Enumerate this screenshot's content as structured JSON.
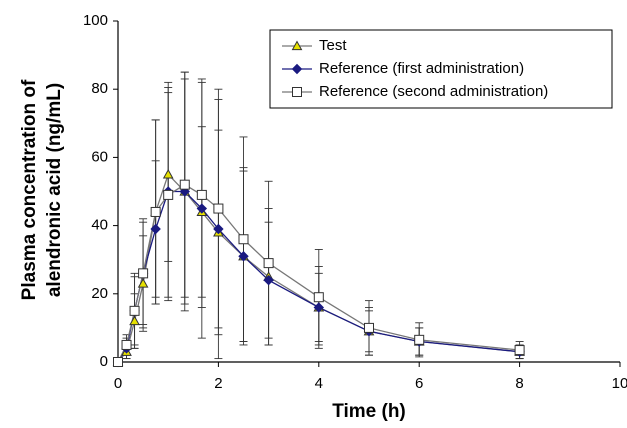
{
  "chart_data": {
    "type": "line",
    "x_label": "Time (h)",
    "y_label": [
      "Plasma concentration of",
      "alendronic acid (ng/mL)"
    ],
    "x": [
      0,
      0.17,
      0.33,
      0.5,
      0.75,
      1,
      1.33,
      1.67,
      2,
      2.5,
      3,
      4,
      5,
      6,
      8
    ],
    "series": [
      {
        "name": "Test",
        "color": "#777777",
        "marker": "triangle",
        "marker_color": "#e6e000",
        "values": [
          0,
          3,
          12,
          23,
          44,
          55,
          50,
          44,
          38,
          31,
          25,
          16,
          9,
          6,
          3
        ],
        "errors": [
          0,
          2,
          8,
          14,
          27,
          25.5,
          33,
          25,
          30,
          25,
          20,
          12,
          7,
          4,
          2
        ]
      },
      {
        "name": "Reference (first administration)",
        "color": "#1a1a80",
        "marker": "diamond",
        "marker_color": "#1a1a80",
        "values": [
          0,
          4,
          15,
          26,
          39,
          50,
          50,
          45,
          39,
          31,
          24,
          16,
          9,
          6,
          3
        ],
        "errors": [
          0,
          3,
          10,
          15,
          20,
          32,
          35,
          38,
          38,
          26,
          17,
          10,
          6,
          4,
          2
        ]
      },
      {
        "name": "Reference (second administration)",
        "color": "#777777",
        "marker": "square",
        "marker_color": "#ffffff",
        "values": [
          0,
          5,
          15,
          26,
          44,
          49,
          52,
          49,
          45,
          36,
          29,
          19,
          10,
          6.5,
          3.5
        ],
        "errors": [
          0,
          3,
          11,
          16,
          27,
          30,
          33,
          33,
          35,
          30,
          24,
          14,
          8,
          5,
          2.5
        ]
      }
    ],
    "xlim": [
      0,
      10
    ],
    "xticks": [
      0,
      2,
      4,
      6,
      8,
      10
    ],
    "ylim": [
      0,
      100
    ],
    "yticks": [
      0,
      20,
      40,
      60,
      80,
      100
    ],
    "grid": false,
    "legend": "upper right"
  }
}
